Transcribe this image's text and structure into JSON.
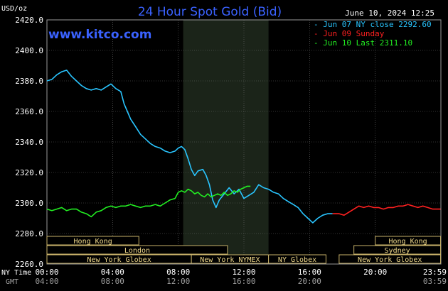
{
  "chart_data": {
    "type": "line",
    "title": "24 Hour Spot Gold (Bid)",
    "watermark": "www.kitco.com",
    "date_label": "June 10, 2024 12:25",
    "ylabel": "USD/oz",
    "ylim": [
      2260,
      2420
    ],
    "yticks": [
      "2260.0",
      "2280.0",
      "2300.0",
      "2320.0",
      "2340.0",
      "2360.0",
      "2380.0",
      "2400.0",
      "2420.0"
    ],
    "xlim": [
      0,
      24
    ],
    "x_ticks_ny": [
      "00:00",
      "04:00",
      "08:00",
      "12:00",
      "16:00",
      "20:00",
      "23:59"
    ],
    "x_ticks_gmt": [
      "04:00",
      "08:00",
      "12:00",
      "16:00",
      "20:00",
      "",
      "03:59"
    ],
    "x_label_ny": "NY Time",
    "x_label_gmt": "GMT",
    "grid": true,
    "legend_position": "top-right",
    "shaded_session_hours": [
      8.3,
      13.5
    ],
    "series": [
      {
        "name": "- Jun 07 NY close 2292.60",
        "color": "#29c5ff",
        "x": [
          0,
          0.3,
          0.6,
          0.9,
          1.2,
          1.5,
          1.8,
          2.1,
          2.4,
          2.7,
          3.0,
          3.3,
          3.6,
          3.9,
          4.2,
          4.5,
          4.7,
          4.9,
          5.1,
          5.4,
          5.7,
          6.0,
          6.3,
          6.6,
          6.9,
          7.2,
          7.5,
          7.8,
          8.0,
          8.2,
          8.4,
          8.6,
          8.8,
          9.0,
          9.2,
          9.5,
          9.7,
          9.9,
          10.1,
          10.3,
          10.5,
          10.8,
          11.1,
          11.4,
          11.7,
          12.0,
          12.3,
          12.6,
          12.9,
          13.2,
          13.5,
          13.8,
          14.1,
          14.4,
          14.7,
          15.0,
          15.3,
          15.6,
          15.9,
          16.2,
          16.5,
          16.8,
          17.1,
          17.4
        ],
        "y": [
          2380,
          2381,
          2384,
          2386,
          2387,
          2383,
          2380,
          2377,
          2375,
          2374,
          2375,
          2374,
          2376,
          2378,
          2375,
          2373,
          2365,
          2360,
          2355,
          2350,
          2345,
          2342,
          2339,
          2337,
          2336,
          2334,
          2333,
          2334,
          2336,
          2337,
          2335,
          2329,
          2322,
          2318,
          2321,
          2322,
          2318,
          2312,
          2302,
          2297,
          2302,
          2306,
          2310,
          2306,
          2309,
          2303,
          2305,
          2307,
          2312,
          2310,
          2309,
          2307,
          2306,
          2303,
          2301,
          2299,
          2297,
          2293,
          2290,
          2287,
          2290,
          2292,
          2293,
          2293
        ]
      },
      {
        "name": "- Jun 09 Sunday",
        "color": "#ff2020",
        "x": [
          17.4,
          17.8,
          18.1,
          18.4,
          18.7,
          19.0,
          19.3,
          19.6,
          19.9,
          20.2,
          20.5,
          20.8,
          21.1,
          21.4,
          21.7,
          22.0,
          22.3,
          22.6,
          22.9,
          23.2,
          23.5,
          23.98
        ],
        "y": [
          2293,
          2293,
          2292,
          2294,
          2296,
          2298,
          2297,
          2298,
          2297,
          2297,
          2296,
          2297,
          2297,
          2298,
          2298,
          2299,
          2298,
          2297,
          2298,
          2297,
          2296,
          2296
        ]
      },
      {
        "name": "- Jun 10 Last 2311.10",
        "color": "#22ee22",
        "x": [
          0,
          0.3,
          0.6,
          0.9,
          1.2,
          1.5,
          1.8,
          2.1,
          2.4,
          2.7,
          3.0,
          3.3,
          3.6,
          3.9,
          4.2,
          4.5,
          4.8,
          5.1,
          5.4,
          5.7,
          6.0,
          6.3,
          6.6,
          6.9,
          7.2,
          7.5,
          7.8,
          8.0,
          8.2,
          8.4,
          8.6,
          8.8,
          9.0,
          9.2,
          9.4,
          9.6,
          9.8,
          10.0,
          10.2,
          10.4,
          10.6,
          10.8,
          11.0,
          11.2,
          11.4,
          11.6,
          11.8,
          12.0,
          12.2,
          12.4
        ],
        "y": [
          2296,
          2295,
          2296,
          2297,
          2295,
          2296,
          2296,
          2294,
          2293,
          2291,
          2294,
          2295,
          2297,
          2298,
          2297,
          2298,
          2298,
          2299,
          2298,
          2297,
          2298,
          2298,
          2299,
          2298,
          2300,
          2302,
          2303,
          2307,
          2308,
          2307,
          2309,
          2308,
          2306,
          2307,
          2305,
          2304,
          2306,
          2304,
          2305,
          2306,
          2305,
          2307,
          2305,
          2306,
          2308,
          2307,
          2309,
          2310,
          2311,
          2311
        ]
      }
    ],
    "sessions": [
      {
        "label": "Hong Kong",
        "start": 0,
        "end": 5.6,
        "row": 0
      },
      {
        "label": "London",
        "start": 0,
        "end": 11.0,
        "row": 1
      },
      {
        "label": "New York Globex",
        "start": 0,
        "end": 8.8,
        "row": 2
      },
      {
        "label": "New York NYMEX",
        "start": 8.8,
        "end": 13.5,
        "row": 2
      },
      {
        "label": "NY Globex",
        "start": 13.5,
        "end": 17.0,
        "row": 2
      },
      {
        "label": "Hong Kong",
        "start": 20.0,
        "end": 23.98,
        "row": 0
      },
      {
        "label": "Sydney",
        "start": 18.7,
        "end": 23.98,
        "row": 1
      },
      {
        "label": "New York Globex",
        "start": 17.8,
        "end": 23.98,
        "row": 2
      }
    ]
  }
}
